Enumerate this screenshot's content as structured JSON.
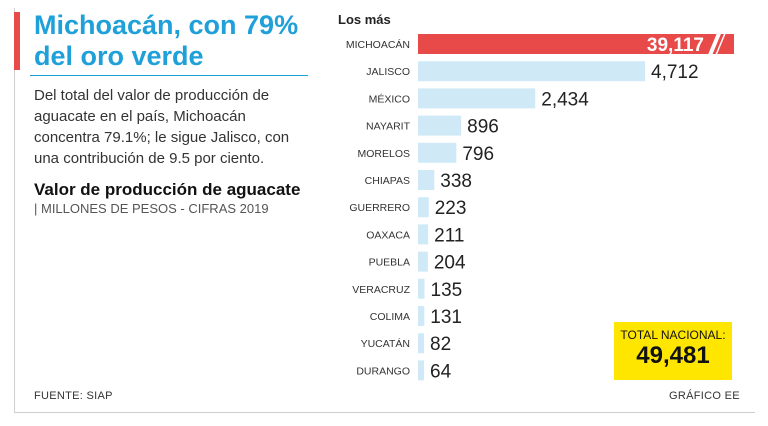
{
  "headline": "Michoacán, con 79% del oro verde",
  "description": "Del total del valor de producción de aguacate en el país, Michoacán concentra 79.1%; le sigue Jalisco, con una contribución de 9.5 por ciento.",
  "subtitle_bold": "Valor de producción de aguacate",
  "subtitle_units": "| MILLONES DE PESOS - CIFRAS 2019",
  "source": "FUENTE: SIAP",
  "credit": "GRÁFICO EE",
  "total": {
    "label": "TOTAL NACIONAL:",
    "value": "49,481"
  },
  "colors": {
    "headline": "#1fa0d8",
    "accent": "#e84a4a",
    "bar": "#cfe9f7",
    "highlight_bar": "#e84a4a",
    "total_box": "#ffe600"
  },
  "chart_data": {
    "type": "bar",
    "orientation": "horizontal",
    "title": "Los más",
    "categories": [
      "MICHOACÁN",
      "JALISCO",
      "MÉXICO",
      "NAYARIT",
      "MORELOS",
      "CHIAPAS",
      "GUERRERO",
      "OAXACA",
      "PUEBLA",
      "VERACRUZ",
      "COLIMA",
      "YUCATÁN",
      "DURANGO"
    ],
    "values": [
      39117,
      4712,
      2434,
      896,
      796,
      338,
      223,
      211,
      204,
      135,
      131,
      82,
      64
    ],
    "value_labels": [
      "39,117",
      "4,712",
      "2,434",
      "896",
      "796",
      "338",
      "223",
      "211",
      "204",
      "135",
      "131",
      "82",
      "64"
    ],
    "highlight": "MICHOACÁN",
    "axis_break": true,
    "xlabel": "",
    "ylabel": "",
    "grid": false
  }
}
